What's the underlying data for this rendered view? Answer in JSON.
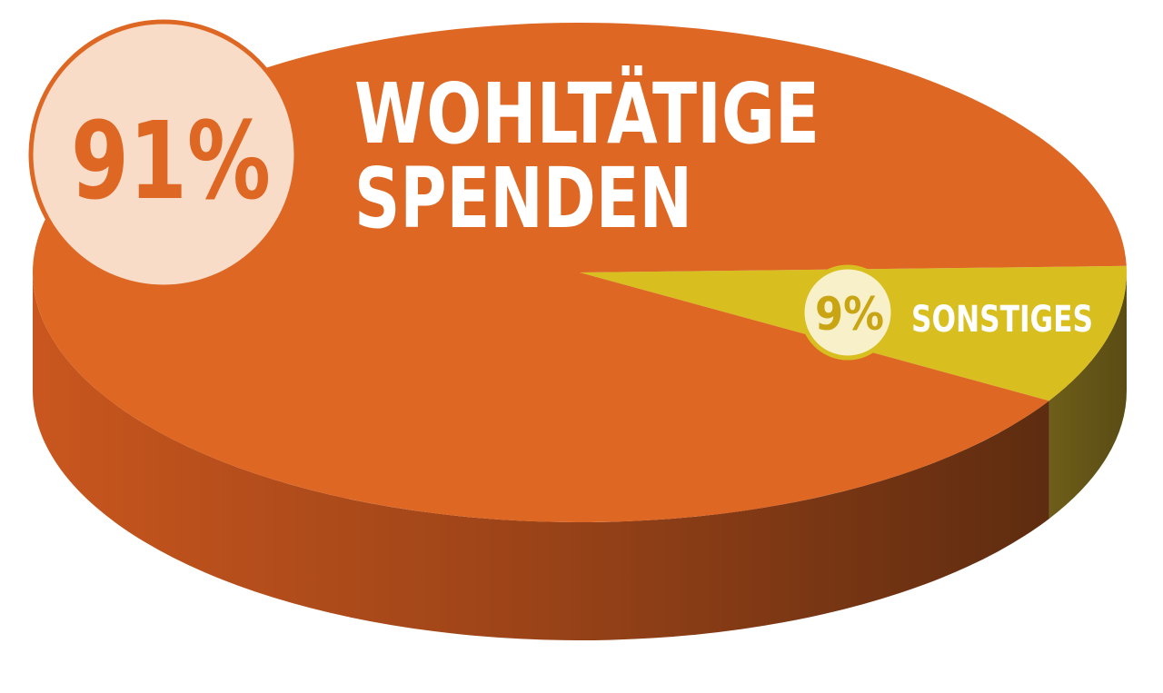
{
  "chart_data": {
    "type": "pie",
    "slices": [
      {
        "label_lines": [
          "WOHLTÄTIGE",
          "SPENDEN"
        ],
        "value": 91,
        "value_label": "91%",
        "color": "#DE6723",
        "badge_fill": "#F9DCC8",
        "badge_text": "#DE6723"
      },
      {
        "label_lines": [
          "SONSTIGES"
        ],
        "value": 9,
        "value_label": "9%",
        "color": "#D8BE1E",
        "badge_fill": "#F7F0C9",
        "badge_text": "#C9A514"
      }
    ]
  }
}
